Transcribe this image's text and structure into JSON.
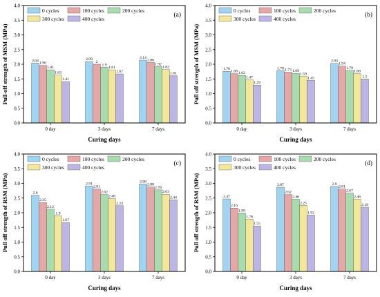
{
  "colors": {
    "0 cycles": "#9fd4f2",
    "100 cycles": "#e8a7a7",
    "200 cycles": "#a6dcae",
    "300 cycles": "#f3e89a",
    "400 cycles": "#bdb5e6"
  },
  "chart_data": [
    {
      "type": "bar",
      "panel_label": "(a)",
      "categories": [
        "0 day",
        "3 days",
        "7 days"
      ],
      "xlabel": "Curing days",
      "ylabel": "Pull-off strength of MSM (MPa)",
      "ylim": [
        0,
        4.0
      ],
      "yticks": [
        "0.0",
        "0.5",
        "1.0",
        "1.5",
        "2.0",
        "2.5",
        "3.0",
        "3.5",
        "4.0"
      ],
      "legend_position": "top-left",
      "series": [
        {
          "name": "0 cycles",
          "values": [
            2.04,
            2.09,
            2.14
          ],
          "labels": [
            "2.04",
            "2.09",
            "2.14"
          ]
        },
        {
          "name": "100 cycles",
          "values": [
            1.96,
            2.0,
            2.06
          ],
          "labels": [
            "1.96",
            "2",
            "2.06"
          ]
        },
        {
          "name": "200 cycles",
          "values": [
            1.81,
            1.9,
            1.92
          ],
          "labels": [
            "1.81",
            "1.9",
            "1.92"
          ]
        },
        {
          "name": "300 cycles",
          "values": [
            1.63,
            1.81,
            1.82
          ],
          "labels": [
            "1.63",
            "1.81",
            "1.82"
          ]
        },
        {
          "name": "400 cycles",
          "values": [
            1.41,
            1.67,
            1.61
          ],
          "labels": [
            "1.41",
            "1.67",
            "1.61"
          ]
        }
      ]
    },
    {
      "type": "bar",
      "panel_label": "(b)",
      "categories": [
        "0 day",
        "3 days",
        "7 days"
      ],
      "xlabel": "Curing days",
      "ylabel": "Pull off strength of MSM (MPa)",
      "ylim": [
        0,
        4.0
      ],
      "yticks": [
        "0.0",
        "0.5",
        "1.0",
        "1.5",
        "2.0",
        "2.5",
        "3.0",
        "3.5",
        "4.0"
      ],
      "legend_position": "top-left",
      "series": [
        {
          "name": "0 cycles",
          "values": [
            1.76,
            1.78,
            2.03
          ],
          "labels": [
            "1.76",
            "1.78",
            "2.03"
          ]
        },
        {
          "name": "100 cycles",
          "values": [
            1.68,
            1.73,
            1.94
          ],
          "labels": [
            "1.68",
            "1.73",
            "1.94"
          ]
        },
        {
          "name": "200 cycles",
          "values": [
            1.62,
            1.69,
            1.79
          ],
          "labels": [
            "1.62",
            "1.69",
            "1.79"
          ]
        },
        {
          "name": "300 cycles",
          "values": [
            1.47,
            1.59,
            1.68
          ],
          "labels": [
            "1.47",
            "1.59",
            "1.68"
          ]
        },
        {
          "name": "400 cycles",
          "values": [
            1.29,
            1.45,
            1.5
          ],
          "labels": [
            "1.29",
            "1.45",
            "1.5"
          ]
        }
      ]
    },
    {
      "type": "bar",
      "panel_label": "(c)",
      "categories": [
        "0 day",
        "3 days",
        "7 days"
      ],
      "xlabel": "Curing days",
      "ylabel": "Pull off strength of RSM (MPa)",
      "ylim": [
        0,
        4.0
      ],
      "yticks": [
        "0.0",
        "0.5",
        "1.0",
        "1.5",
        "2.0",
        "2.5",
        "3.0",
        "3.5",
        "4.0"
      ],
      "legend_position": "top-left",
      "series": [
        {
          "name": "0 cycles",
          "values": [
            2.6,
            2.91,
            2.98
          ],
          "labels": [
            "2.6",
            "2.91",
            "2.98"
          ]
        },
        {
          "name": "100 cycles",
          "values": [
            2.35,
            2.81,
            2.88
          ],
          "labels": [
            "2.35",
            "2.81",
            "2.88"
          ]
        },
        {
          "name": "200 cycles",
          "values": [
            2.12,
            2.62,
            2.78
          ],
          "labels": [
            "2.12",
            "2.62",
            "2.78"
          ]
        },
        {
          "name": "300 cycles",
          "values": [
            1.9,
            2.48,
            2.63
          ],
          "labels": [
            "1.9",
            "2.48",
            "2.63"
          ]
        },
        {
          "name": "400 cycles",
          "values": [
            1.67,
            2.24,
            2.44
          ],
          "labels": [
            "1.67",
            "2.24",
            "2.44"
          ]
        }
      ]
    },
    {
      "type": "bar",
      "panel_label": "(d)",
      "categories": [
        "0 day",
        "3 days",
        "7 days"
      ],
      "xlabel": "Curing days",
      "ylabel": "Pull off strength of RSM (MPa)",
      "ylim": [
        0,
        4.0
      ],
      "yticks": [
        "0.0",
        "0.5",
        "1.0",
        "1.5",
        "2.0",
        "2.5",
        "3.0",
        "3.5",
        "4.0"
      ],
      "legend_position": "top-left",
      "series": [
        {
          "name": "0 cycles",
          "values": [
            2.47,
            2.87,
            2.9
          ],
          "labels": [
            "2.47",
            "2.87",
            "2.9"
          ]
        },
        {
          "name": "100 cycles",
          "values": [
            2.16,
            2.62,
            2.81
          ],
          "labels": [
            "2.16",
            "2.62",
            "2.81"
          ]
        },
        {
          "name": "200 cycles",
          "values": [
            1.99,
            2.46,
            2.67
          ],
          "labels": [
            "1.99",
            "2.46",
            "2.67"
          ]
        },
        {
          "name": "300 cycles",
          "values": [
            1.78,
            2.25,
            2.46
          ],
          "labels": [
            "1.78",
            "2.25",
            "2.46"
          ]
        },
        {
          "name": "400 cycles",
          "values": [
            1.55,
            1.92,
            2.19
          ],
          "labels": [
            "1.55",
            "1.92",
            "2.19"
          ]
        }
      ]
    }
  ]
}
